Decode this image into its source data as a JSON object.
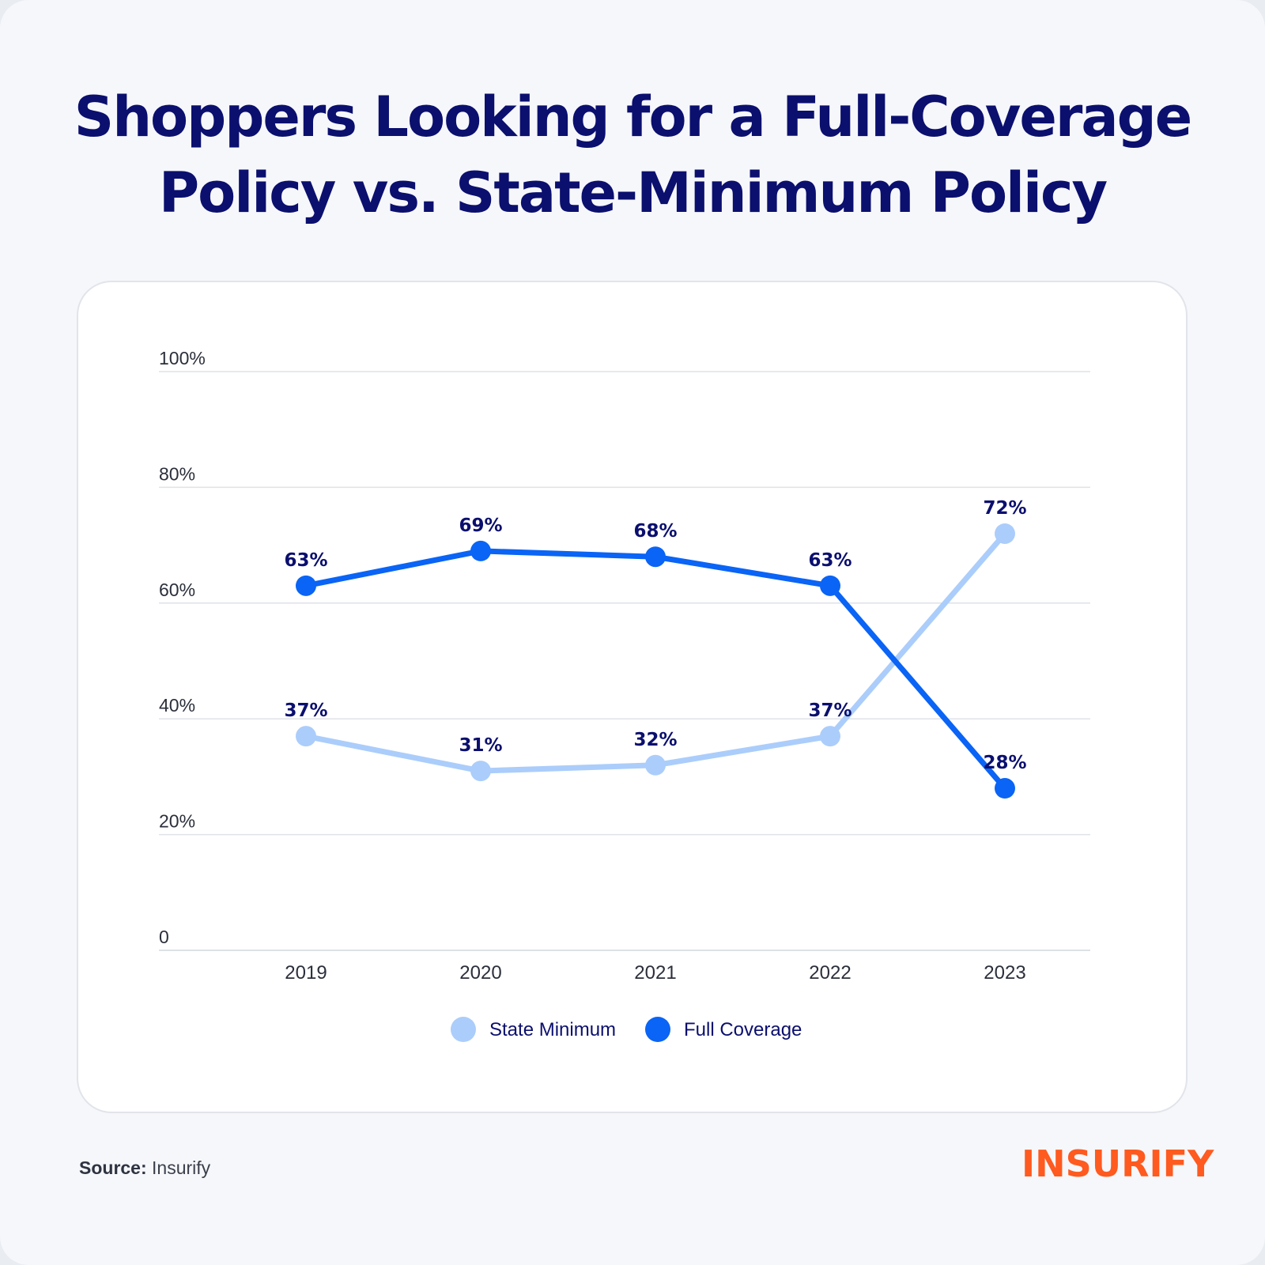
{
  "title_line1": "Shoppers Looking for a Full-Coverage",
  "title_line2": "Policy vs. State-Minimum Policy",
  "source_label": "Source:",
  "source_value": "Insurify",
  "logo_text": "INSURIFY",
  "colors": {
    "title": "#0b0f6e",
    "full_coverage": "#0a64f5",
    "state_minimum": "#abcdfb",
    "grid": "#dfe2e7",
    "label": "#0b0f6e",
    "logo": "#ff5a1f"
  },
  "chart_data": {
    "type": "line",
    "categories": [
      "2019",
      "2020",
      "2021",
      "2022",
      "2023"
    ],
    "series": [
      {
        "name": "State Minimum",
        "values": [
          37,
          31,
          32,
          37,
          72
        ],
        "labels": [
          "37%",
          "31%",
          "32%",
          "37%",
          "72%"
        ]
      },
      {
        "name": "Full Coverage",
        "values": [
          63,
          69,
          68,
          63,
          28
        ],
        "labels": [
          "63%",
          "69%",
          "68%",
          "63%",
          "28%"
        ]
      }
    ],
    "ylim": [
      0,
      100
    ],
    "yticks": [
      0,
      20,
      40,
      60,
      80,
      100
    ],
    "ytick_labels": [
      "0",
      "20%",
      "40%",
      "60%",
      "80%",
      "100%"
    ],
    "grid": true,
    "legend_position": "bottom-center"
  }
}
